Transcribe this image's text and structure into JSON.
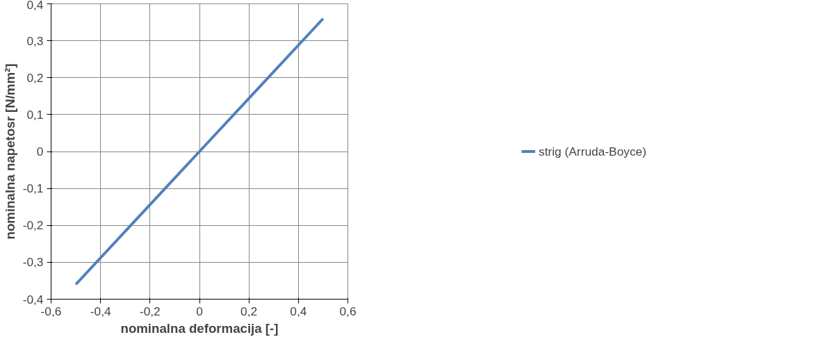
{
  "chart_data": {
    "type": "line",
    "xlabel": "nominalna deformacija [-]",
    "ylabel": "nominalna napetosr [N/mm²]",
    "x": [
      -0.5,
      -0.25,
      0,
      0.25,
      0.5
    ],
    "series": [
      {
        "name": "strig (Arruda-Boyce)",
        "color": "#4f81bd",
        "values": [
          -0.36,
          -0.18,
          0,
          0.18,
          0.36
        ]
      }
    ],
    "xlim": [
      -0.6,
      0.6
    ],
    "ylim": [
      -0.4,
      0.4
    ],
    "xticks": [
      {
        "value": -0.6,
        "label": "-0,6"
      },
      {
        "value": -0.4,
        "label": "-0,4"
      },
      {
        "value": -0.2,
        "label": "-0,2"
      },
      {
        "value": 0,
        "label": "0"
      },
      {
        "value": 0.2,
        "label": "0,2"
      },
      {
        "value": 0.4,
        "label": "0,4"
      },
      {
        "value": 0.6,
        "label": "0,6"
      }
    ],
    "yticks": [
      {
        "value": -0.4,
        "label": "-0,4"
      },
      {
        "value": -0.3,
        "label": "-0,3"
      },
      {
        "value": -0.2,
        "label": "-0,2"
      },
      {
        "value": -0.1,
        "label": "-0,1"
      },
      {
        "value": 0,
        "label": "0"
      },
      {
        "value": 0.1,
        "label": "0,1"
      },
      {
        "value": 0.2,
        "label": "0,2"
      },
      {
        "value": 0.3,
        "label": "0,3"
      },
      {
        "value": 0.4,
        "label": "0,4"
      }
    ],
    "grid": true,
    "legend": "right",
    "marker": "none",
    "line_style": "solid"
  }
}
